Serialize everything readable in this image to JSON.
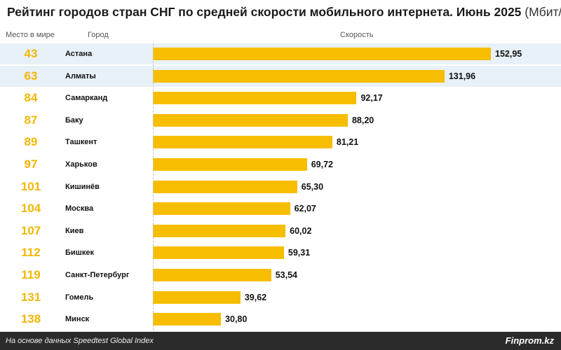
{
  "chart_data": {
    "type": "bar",
    "title": "Рейтинг городов стран СНГ по средней скорости мобильного интернета. Июнь 2025",
    "unit": "(Мбит/с)",
    "headers": {
      "rank": "Место в мире",
      "city": "Город",
      "speed": "Скорость"
    },
    "categories": [
      "Астана",
      "Алматы",
      "Самарканд",
      "Баку",
      "Ташкент",
      "Харьков",
      "Кишинёв",
      "Москва",
      "Киев",
      "Бишкек",
      "Санкт-Петербург",
      "Гомель",
      "Минск"
    ],
    "ranks": [
      "43",
      "63",
      "84",
      "87",
      "89",
      "97",
      "101",
      "104",
      "107",
      "112",
      "119",
      "131",
      "138"
    ],
    "values": [
      152.95,
      131.96,
      92.17,
      88.2,
      81.21,
      69.72,
      65.3,
      62.07,
      60.02,
      59.31,
      53.54,
      39.62,
      30.8
    ],
    "value_labels": [
      "152,95",
      "131,96",
      "92,17",
      "88,20",
      "81,21",
      "69,72",
      "65,30",
      "62,07",
      "60,02",
      "59,31",
      "53,54",
      "39,62",
      "30,80"
    ],
    "highlighted_rows": [
      0,
      1
    ],
    "bar_color": "#f7bd00",
    "rank_color": "#f2b705",
    "highlight_color": "#e8f0f8"
  },
  "footer": {
    "source": "На основе данных Speedtest Global Index",
    "brand": "Finprom.kz"
  }
}
